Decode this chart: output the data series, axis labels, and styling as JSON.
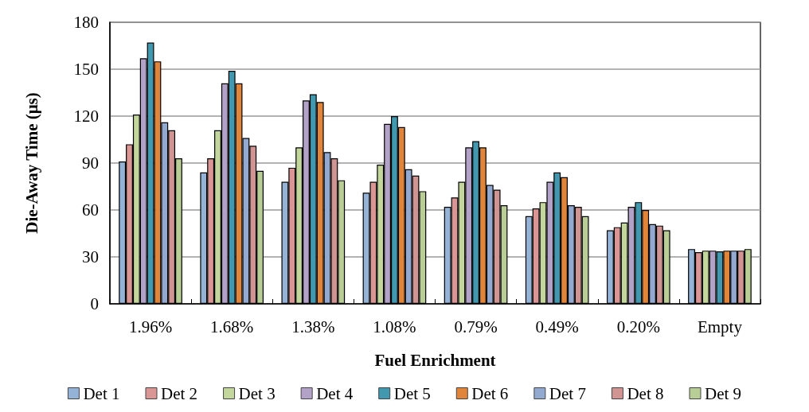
{
  "chart_data": {
    "type": "bar",
    "xlabel": "Fuel Enrichment",
    "ylabel": "Die-Away Time (μs)",
    "categories": [
      "1.96%",
      "1.68%",
      "1.38%",
      "1.08%",
      "0.79%",
      "0.49%",
      "0.20%",
      "Empty"
    ],
    "ylim": [
      0,
      180
    ],
    "yticks": [
      0,
      30,
      60,
      90,
      120,
      150,
      180
    ],
    "grid": "y",
    "legend": "bottom",
    "series": [
      {
        "name": "Det 1",
        "color": "#95b3d7",
        "values": [
          91,
          84,
          78,
          71,
          62,
          56,
          47,
          35
        ]
      },
      {
        "name": "Det 2",
        "color": "#d99694",
        "values": [
          102,
          93,
          87,
          78,
          68,
          61,
          49,
          33
        ]
      },
      {
        "name": "Det 3",
        "color": "#c3d69b",
        "values": [
          121,
          111,
          100,
          89,
          78,
          65,
          52,
          34
        ]
      },
      {
        "name": "Det 4",
        "color": "#b3a2c7",
        "values": [
          157,
          141,
          130,
          115,
          100,
          78,
          62,
          34
        ]
      },
      {
        "name": "Det 5",
        "color": "#4198af",
        "values": [
          167,
          149,
          134,
          120,
          104,
          84,
          65,
          33.5
        ]
      },
      {
        "name": "Det 6",
        "color": "#e0853a",
        "values": [
          155,
          141,
          129,
          113,
          100,
          81,
          60,
          34
        ]
      },
      {
        "name": "Det 7",
        "color": "#93a9cf",
        "values": [
          116,
          106,
          97,
          86,
          76,
          63,
          51,
          34
        ]
      },
      {
        "name": "Det 8",
        "color": "#d09493",
        "values": [
          111,
          101,
          93,
          82,
          73,
          62,
          50,
          34
        ]
      },
      {
        "name": "Det 9",
        "color": "#b9cd96",
        "values": [
          93,
          85,
          79,
          72,
          63,
          56,
          47,
          35
        ]
      }
    ]
  }
}
